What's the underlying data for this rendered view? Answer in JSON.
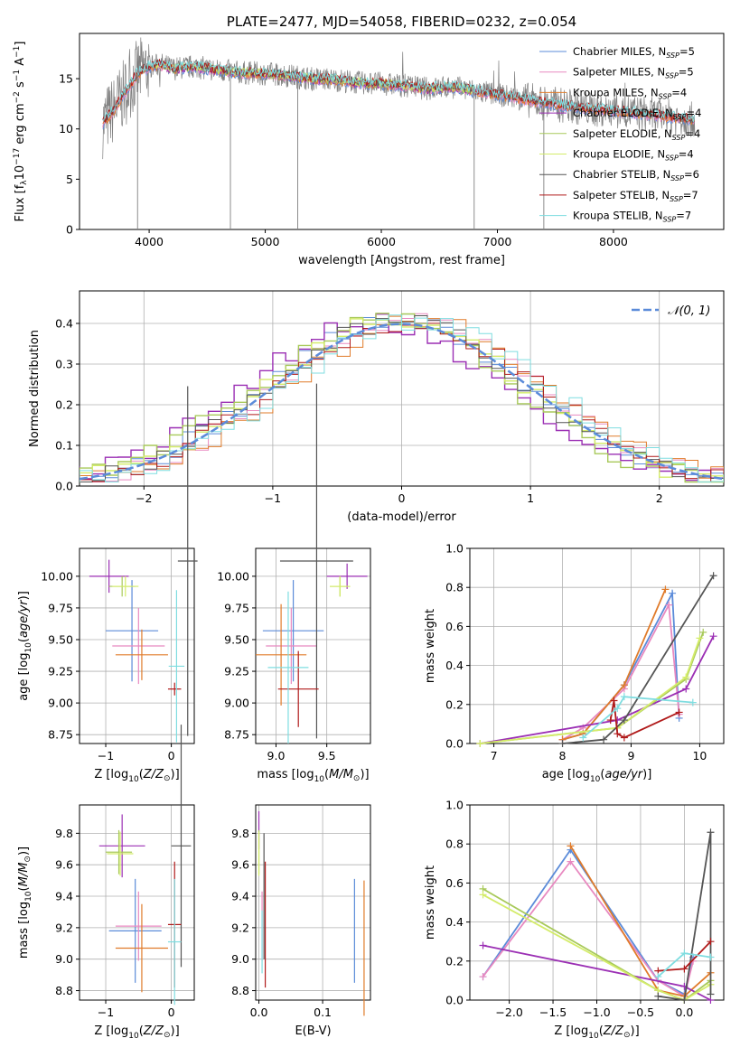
{
  "colors": {
    "chabrier_miles": "#5b8bd9",
    "salpeter_miles": "#e889c0",
    "kroupa_miles": "#e07b2a",
    "chabrier_elodie": "#9b2fb4",
    "salpeter_elodie": "#a8c95a",
    "kroupa_elodie": "#d4ec6a",
    "chabrier_stelib": "#555555",
    "salpeter_stelib": "#b01a1a",
    "kroupa_stelib": "#7fdde0",
    "gauss": "#5b8bd9",
    "grid": "#b0b0b0",
    "data": "#808080"
  },
  "chart_data": [
    {
      "id": "spectrum",
      "type": "line",
      "title": "PLATE=2477, MJD=54058, FIBERID=0232, z=0.054",
      "xlabel": "wavelength [Angstrom, rest frame]",
      "ylabel": "Flux [f_λ10^-17 erg cm^-2 s^-1 A^-1]",
      "xlim": [
        3400,
        8950
      ],
      "ylim": [
        0,
        19.5
      ],
      "xticks": [
        "4000",
        "5000",
        "6000",
        "7000",
        "8000"
      ],
      "yticks": [
        "0",
        "5",
        "10",
        "15"
      ],
      "grid": false,
      "legend_position": "top-right",
      "legend": [
        {
          "label": "Chabrier MILES, N",
          "sub": "SSP",
          "suffix": "=5",
          "color_key": "chabrier_miles"
        },
        {
          "label": "Salpeter MILES, N",
          "sub": "SSP",
          "suffix": "=5",
          "color_key": "salpeter_miles"
        },
        {
          "label": "Kroupa MILES, N",
          "sub": "SSP",
          "suffix": "=4",
          "color_key": "kroupa_miles"
        },
        {
          "label": "Chabrier ELODIE, N",
          "sub": "SSP",
          "suffix": "=4",
          "color_key": "chabrier_elodie"
        },
        {
          "label": "Salpeter ELODIE, N",
          "sub": "SSP",
          "suffix": "=4",
          "color_key": "salpeter_elodie"
        },
        {
          "label": "Kroupa ELODIE, N",
          "sub": "SSP",
          "suffix": "=4",
          "color_key": "kroupa_elodie"
        },
        {
          "label": "Chabrier STELIB, N",
          "sub": "SSP",
          "suffix": "=6",
          "color_key": "chabrier_stelib"
        },
        {
          "label": "Salpeter STELIB, N",
          "sub": "SSP",
          "suffix": "=7",
          "color_key": "salpeter_stelib"
        },
        {
          "label": "Kroupa STELIB, N",
          "sub": "SSP",
          "suffix": "=7",
          "color_key": "kroupa_stelib"
        }
      ],
      "continuum": {
        "x": [
          3600,
          3700,
          3800,
          3900,
          4000,
          4100,
          4200,
          4400,
          4600,
          4800,
          5000,
          5200,
          5400,
          5600,
          5800,
          6000,
          6200,
          6400,
          6600,
          6800,
          7000,
          7200,
          7400,
          7600,
          7800,
          8000,
          8200,
          8400,
          8600,
          8700
        ],
        "y": [
          10.5,
          12.0,
          13.8,
          15.5,
          16.2,
          16.4,
          16.0,
          16.2,
          15.8,
          15.6,
          15.5,
          15.3,
          15.0,
          14.9,
          14.6,
          14.5,
          14.3,
          14.0,
          14.2,
          13.8,
          13.4,
          13.0,
          12.6,
          12.3,
          12.0,
          11.8,
          11.6,
          11.3,
          11.0,
          10.9
        ]
      },
      "spikes": [
        {
          "x": 3900,
          "y": 0
        },
        {
          "x": 4700,
          "y": 0
        },
        {
          "x": 5280,
          "y": 0
        },
        {
          "x": 6800,
          "y": 0
        },
        {
          "x": 7400,
          "y": 0
        }
      ]
    },
    {
      "id": "residuals",
      "type": "step",
      "xlabel": "(data-model)/error",
      "ylabel": "Normed distribution",
      "xlim": [
        -2.5,
        2.5
      ],
      "ylim": [
        0,
        0.48
      ],
      "xticks": [
        "−2",
        "−1",
        "0",
        "1",
        "2"
      ],
      "yticks": [
        "0.0",
        "0.1",
        "0.2",
        "0.3",
        "0.4"
      ],
      "grid": true,
      "legend_position": "top-right",
      "gauss_label": "𝒩(0, 1)"
    },
    {
      "id": "age_vs_Z",
      "type": "errorbar",
      "xlabel": "Z [log10(Z/Z⊙)]",
      "ylabel": "age [log10(age/yr)]",
      "xlim": [
        -1.4,
        0.35
      ],
      "ylim": [
        8.68,
        10.22
      ],
      "xticks": [
        "−1",
        "0"
      ],
      "yticks": [
        "8.75",
        "9.00",
        "9.25",
        "9.50",
        "9.75",
        "10.00"
      ],
      "points": [
        {
          "key": "chabrier_miles",
          "x": -0.6,
          "xerr": 0.4,
          "y": 9.57,
          "yerr": 0.4
        },
        {
          "key": "salpeter_miles",
          "x": -0.5,
          "xerr": 0.4,
          "y": 9.45,
          "yerr": 0.3
        },
        {
          "key": "kroupa_miles",
          "x": -0.45,
          "xerr": 0.4,
          "y": 9.38,
          "yerr": 0.2
        },
        {
          "key": "chabrier_elodie",
          "x": -0.95,
          "xerr": 0.3,
          "y": 10.0,
          "yerr": 0.13
        },
        {
          "key": "salpeter_elodie",
          "x": -0.75,
          "xerr": 0.2,
          "y": 9.92,
          "yerr": 0.08
        },
        {
          "key": "kroupa_elodie",
          "x": -0.7,
          "xerr": 0.2,
          "y": 9.92,
          "yerr": 0.08
        },
        {
          "key": "chabrier_stelib",
          "x": 0.25,
          "xerr": 0.15,
          "y": 10.12,
          "yerr": 1.38
        },
        {
          "key": "salpeter_stelib",
          "x": 0.05,
          "xerr": 0.1,
          "y": 9.11,
          "yerr": 0.05
        },
        {
          "key": "kroupa_stelib",
          "x": 0.08,
          "xerr": 0.12,
          "y": 9.29,
          "yerr": 0.6
        }
      ]
    },
    {
      "id": "age_vs_mass",
      "type": "errorbar",
      "xlabel": "mass [log10(M/M⊙)]",
      "ylabel": "",
      "xlim": [
        8.8,
        9.93
      ],
      "ylim": [
        8.68,
        10.22
      ],
      "xticks": [
        "9.0",
        "9.5"
      ],
      "yticks": [
        "8.75",
        "9.00",
        "9.25",
        "9.50",
        "9.75",
        "10.00"
      ],
      "points": [
        {
          "key": "chabrier_miles",
          "x": 9.17,
          "xerr": 0.3,
          "y": 9.57,
          "yerr": 0.4
        },
        {
          "key": "salpeter_miles",
          "x": 9.15,
          "xerr": 0.25,
          "y": 9.45,
          "yerr": 0.3
        },
        {
          "key": "kroupa_miles",
          "x": 9.05,
          "xerr": 0.25,
          "y": 9.38,
          "yerr": 0.4
        },
        {
          "key": "chabrier_elodie",
          "x": 9.7,
          "xerr": 0.2,
          "y": 10.0,
          "yerr": 0.1
        },
        {
          "key": "salpeter_elodie",
          "x": 9.63,
          "xerr": 0.1,
          "y": 9.92,
          "yerr": 0.08
        },
        {
          "key": "kroupa_elodie",
          "x": 9.63,
          "xerr": 0.1,
          "y": 9.92,
          "yerr": 0.08
        },
        {
          "key": "chabrier_stelib",
          "x": 9.4,
          "xerr": 0.36,
          "y": 10.12,
          "yerr": 1.4
        },
        {
          "key": "salpeter_stelib",
          "x": 9.22,
          "xerr": 0.2,
          "y": 9.11,
          "yerr": 0.3
        },
        {
          "key": "kroupa_stelib",
          "x": 9.12,
          "xerr": 0.2,
          "y": 9.28,
          "yerr": 0.6
        }
      ]
    },
    {
      "id": "massweight_vs_age",
      "type": "line",
      "xlabel": "age [log10(age/yr)]",
      "ylabel": "mass weight",
      "xlim": [
        6.65,
        10.35
      ],
      "ylim": [
        0,
        1.0
      ],
      "xticks": [
        "7",
        "8",
        "9",
        "10"
      ],
      "yticks": [
        "0.0",
        "0.2",
        "0.4",
        "0.6",
        "0.8",
        "1.0"
      ],
      "series": [
        {
          "key": "chabrier_miles",
          "x": [
            8.0,
            8.3,
            8.9,
            9.6,
            9.7
          ],
          "y": [
            0.02,
            0.05,
            0.3,
            0.77,
            0.13
          ]
        },
        {
          "key": "salpeter_miles",
          "x": [
            8.0,
            8.3,
            8.9,
            9.55,
            9.7
          ],
          "y": [
            0.02,
            0.08,
            0.28,
            0.71,
            0.15
          ]
        },
        {
          "key": "kroupa_miles",
          "x": [
            8.0,
            8.3,
            8.9,
            9.5
          ],
          "y": [
            0.02,
            0.05,
            0.3,
            0.79
          ]
        },
        {
          "key": "chabrier_elodie",
          "x": [
            6.8,
            8.8,
            9.8,
            10.2
          ],
          "y": [
            0.0,
            0.12,
            0.28,
            0.55
          ]
        },
        {
          "key": "salpeter_elodie",
          "x": [
            6.8,
            8.8,
            9.8,
            10.05
          ],
          "y": [
            0.0,
            0.08,
            0.33,
            0.57
          ]
        },
        {
          "key": "kroupa_elodie",
          "x": [
            6.8,
            8.8,
            9.8,
            10.0
          ],
          "y": [
            0.0,
            0.08,
            0.34,
            0.54
          ]
        },
        {
          "key": "chabrier_stelib",
          "x": [
            8.0,
            8.6,
            8.9,
            10.2
          ],
          "y": [
            0.0,
            0.02,
            0.12,
            0.86
          ]
        },
        {
          "key": "salpeter_stelib",
          "x": [
            8.7,
            8.75,
            8.8,
            8.9,
            9.7
          ],
          "y": [
            0.12,
            0.22,
            0.05,
            0.03,
            0.16
          ]
        },
        {
          "key": "kroupa_stelib",
          "x": [
            8.3,
            8.8,
            8.9,
            9.9
          ],
          "y": [
            0.03,
            0.18,
            0.24,
            0.21
          ]
        }
      ]
    },
    {
      "id": "mass_vs_Z",
      "type": "errorbar",
      "xlabel": "Z [log10(Z/Z⊙)]",
      "ylabel": "mass [log10(M/M⊙)]",
      "xlim": [
        -1.4,
        0.35
      ],
      "ylim": [
        8.74,
        9.98
      ],
      "xticks": [
        "−1",
        "0"
      ],
      "yticks": [
        "8.8",
        "9.0",
        "9.2",
        "9.4",
        "9.6",
        "9.8"
      ],
      "points": [
        {
          "key": "chabrier_miles",
          "x": -0.55,
          "xerr": 0.4,
          "y": 9.18,
          "yerr": 0.33
        },
        {
          "key": "salpeter_miles",
          "x": -0.5,
          "xerr": 0.35,
          "y": 9.21,
          "yerr": 0.22
        },
        {
          "key": "kroupa_miles",
          "x": -0.45,
          "xerr": 0.4,
          "y": 9.07,
          "yerr": 0.28
        },
        {
          "key": "chabrier_elodie",
          "x": -0.75,
          "xerr": 0.35,
          "y": 9.72,
          "yerr": 0.2
        },
        {
          "key": "salpeter_elodie",
          "x": -0.8,
          "xerr": 0.2,
          "y": 9.68,
          "yerr": 0.14
        },
        {
          "key": "kroupa_elodie",
          "x": -0.78,
          "xerr": 0.2,
          "y": 9.67,
          "yerr": 0.14
        },
        {
          "key": "chabrier_stelib",
          "x": 0.15,
          "xerr": 0.15,
          "y": 9.72,
          "yerr": 0.77
        },
        {
          "key": "salpeter_stelib",
          "x": 0.05,
          "xerr": 0.1,
          "y": 9.22,
          "yerr": 0.4
        },
        {
          "key": "kroupa_stelib",
          "x": 0.05,
          "xerr": 0.1,
          "y": 9.11,
          "yerr": 0.4
        }
      ]
    },
    {
      "id": "mass_vs_ebv",
      "type": "errorbar",
      "xlabel": "E(B-V)",
      "ylabel": "",
      "xlim": [
        -0.005,
        0.175
      ],
      "ylim": [
        8.74,
        9.98
      ],
      "xticks": [
        "0.0",
        "0.1"
      ],
      "yticks": [
        "8.8",
        "9.0",
        "9.2",
        "9.4",
        "9.6",
        "9.8"
      ],
      "points": [
        {
          "key": "chabrier_miles",
          "x": 0.15,
          "xerr": 0.0,
          "y": 9.18,
          "yerr": 0.33
        },
        {
          "key": "kroupa_miles",
          "x": 0.165,
          "xerr": 0.0,
          "y": 9.07,
          "yerr": 0.43
        },
        {
          "key": "salpeter_miles",
          "x": 0.005,
          "xerr": 0.0,
          "y": 9.21,
          "yerr": 0.22
        },
        {
          "key": "chabrier_elodie",
          "x": 0.0,
          "xerr": 0.0,
          "y": 9.82,
          "yerr": 0.12
        },
        {
          "key": "salpeter_elodie",
          "x": 0.0,
          "xerr": 0.0,
          "y": 9.68,
          "yerr": 0.14
        },
        {
          "key": "kroupa_elodie",
          "x": 0.0,
          "xerr": 0.0,
          "y": 9.67,
          "yerr": 0.14
        },
        {
          "key": "chabrier_stelib",
          "x": 0.008,
          "xerr": 0.0,
          "y": 9.4,
          "yerr": 0.4
        },
        {
          "key": "salpeter_stelib",
          "x": 0.01,
          "xerr": 0.0,
          "y": 9.22,
          "yerr": 0.4
        },
        {
          "key": "kroupa_stelib",
          "x": 0.005,
          "xerr": 0.0,
          "y": 9.11,
          "yerr": 0.2
        }
      ]
    },
    {
      "id": "massweight_vs_Z",
      "type": "line",
      "xlabel": "Z [log10(Z/Z⊙)]",
      "ylabel": "mass weight",
      "xlim": [
        -2.45,
        0.45
      ],
      "ylim": [
        0,
        1.0
      ],
      "xticks": [
        "−2.0",
        "−1.5",
        "−1.0",
        "−0.5",
        "0.0"
      ],
      "yticks": [
        "0.0",
        "0.2",
        "0.4",
        "0.6",
        "0.8",
        "1.0"
      ],
      "series": [
        {
          "key": "chabrier_miles",
          "x": [
            -2.3,
            -1.3,
            -0.3,
            0.0,
            0.1
          ],
          "y": [
            0.12,
            0.77,
            0.1,
            0.03,
            0.22
          ]
        },
        {
          "key": "salpeter_miles",
          "x": [
            -2.3,
            -1.3,
            -0.3,
            0.0,
            0.1
          ],
          "y": [
            0.12,
            0.71,
            0.1,
            0.02,
            0.2
          ]
        },
        {
          "key": "kroupa_miles",
          "x": [
            -1.3,
            -0.3,
            0.0,
            0.3
          ],
          "y": [
            0.79,
            0.05,
            0.02,
            0.14
          ]
        },
        {
          "key": "chabrier_elodie",
          "x": [
            -2.3,
            0.0,
            0.3
          ],
          "y": [
            0.28,
            0.07,
            0.0
          ]
        },
        {
          "key": "salpeter_elodie",
          "x": [
            -2.3,
            -0.3,
            0.0,
            0.3
          ],
          "y": [
            0.57,
            0.05,
            0.0,
            0.1
          ]
        },
        {
          "key": "kroupa_elodie",
          "x": [
            -2.3,
            -0.3,
            0.0,
            0.3
          ],
          "y": [
            0.54,
            0.05,
            0.0,
            0.08
          ]
        },
        {
          "key": "chabrier_stelib",
          "x": [
            -0.3,
            0.0,
            0.3,
            0.3
          ],
          "y": [
            0.02,
            0.0,
            0.86,
            0.03
          ]
        },
        {
          "key": "salpeter_stelib",
          "x": [
            -0.3,
            0.0,
            0.3
          ],
          "y": [
            0.15,
            0.16,
            0.3
          ]
        },
        {
          "key": "kroupa_stelib",
          "x": [
            -0.3,
            0.0,
            0.3
          ],
          "y": [
            0.12,
            0.24,
            0.22
          ]
        }
      ]
    }
  ]
}
